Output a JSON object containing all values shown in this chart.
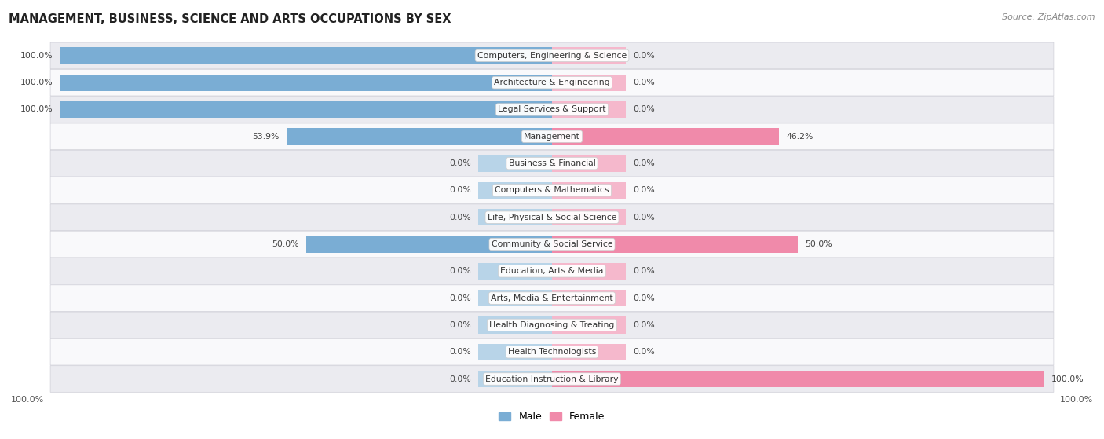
{
  "title": "MANAGEMENT, BUSINESS, SCIENCE AND ARTS OCCUPATIONS BY SEX",
  "source": "Source: ZipAtlas.com",
  "categories": [
    "Computers, Engineering & Science",
    "Architecture & Engineering",
    "Legal Services & Support",
    "Management",
    "Business & Financial",
    "Computers & Mathematics",
    "Life, Physical & Social Science",
    "Community & Social Service",
    "Education, Arts & Media",
    "Arts, Media & Entertainment",
    "Health Diagnosing & Treating",
    "Health Technologists",
    "Education Instruction & Library"
  ],
  "male_values": [
    100.0,
    100.0,
    100.0,
    53.9,
    0.0,
    0.0,
    0.0,
    50.0,
    0.0,
    0.0,
    0.0,
    0.0,
    0.0
  ],
  "female_values": [
    0.0,
    0.0,
    0.0,
    46.2,
    0.0,
    0.0,
    0.0,
    50.0,
    0.0,
    0.0,
    0.0,
    0.0,
    100.0
  ],
  "male_color": "#7aadd4",
  "female_color": "#f08aaa",
  "male_color_light": "#b8d4e8",
  "female_color_light": "#f5b8cc",
  "bg_row_light": "#ebebf0",
  "bg_row_white": "#f9f9fb",
  "stub_size": 15.0,
  "axis_label_left": "100.0%",
  "axis_label_right": "100.0%",
  "legend_male": "Male",
  "legend_female": "Female",
  "xlim": 100.0
}
